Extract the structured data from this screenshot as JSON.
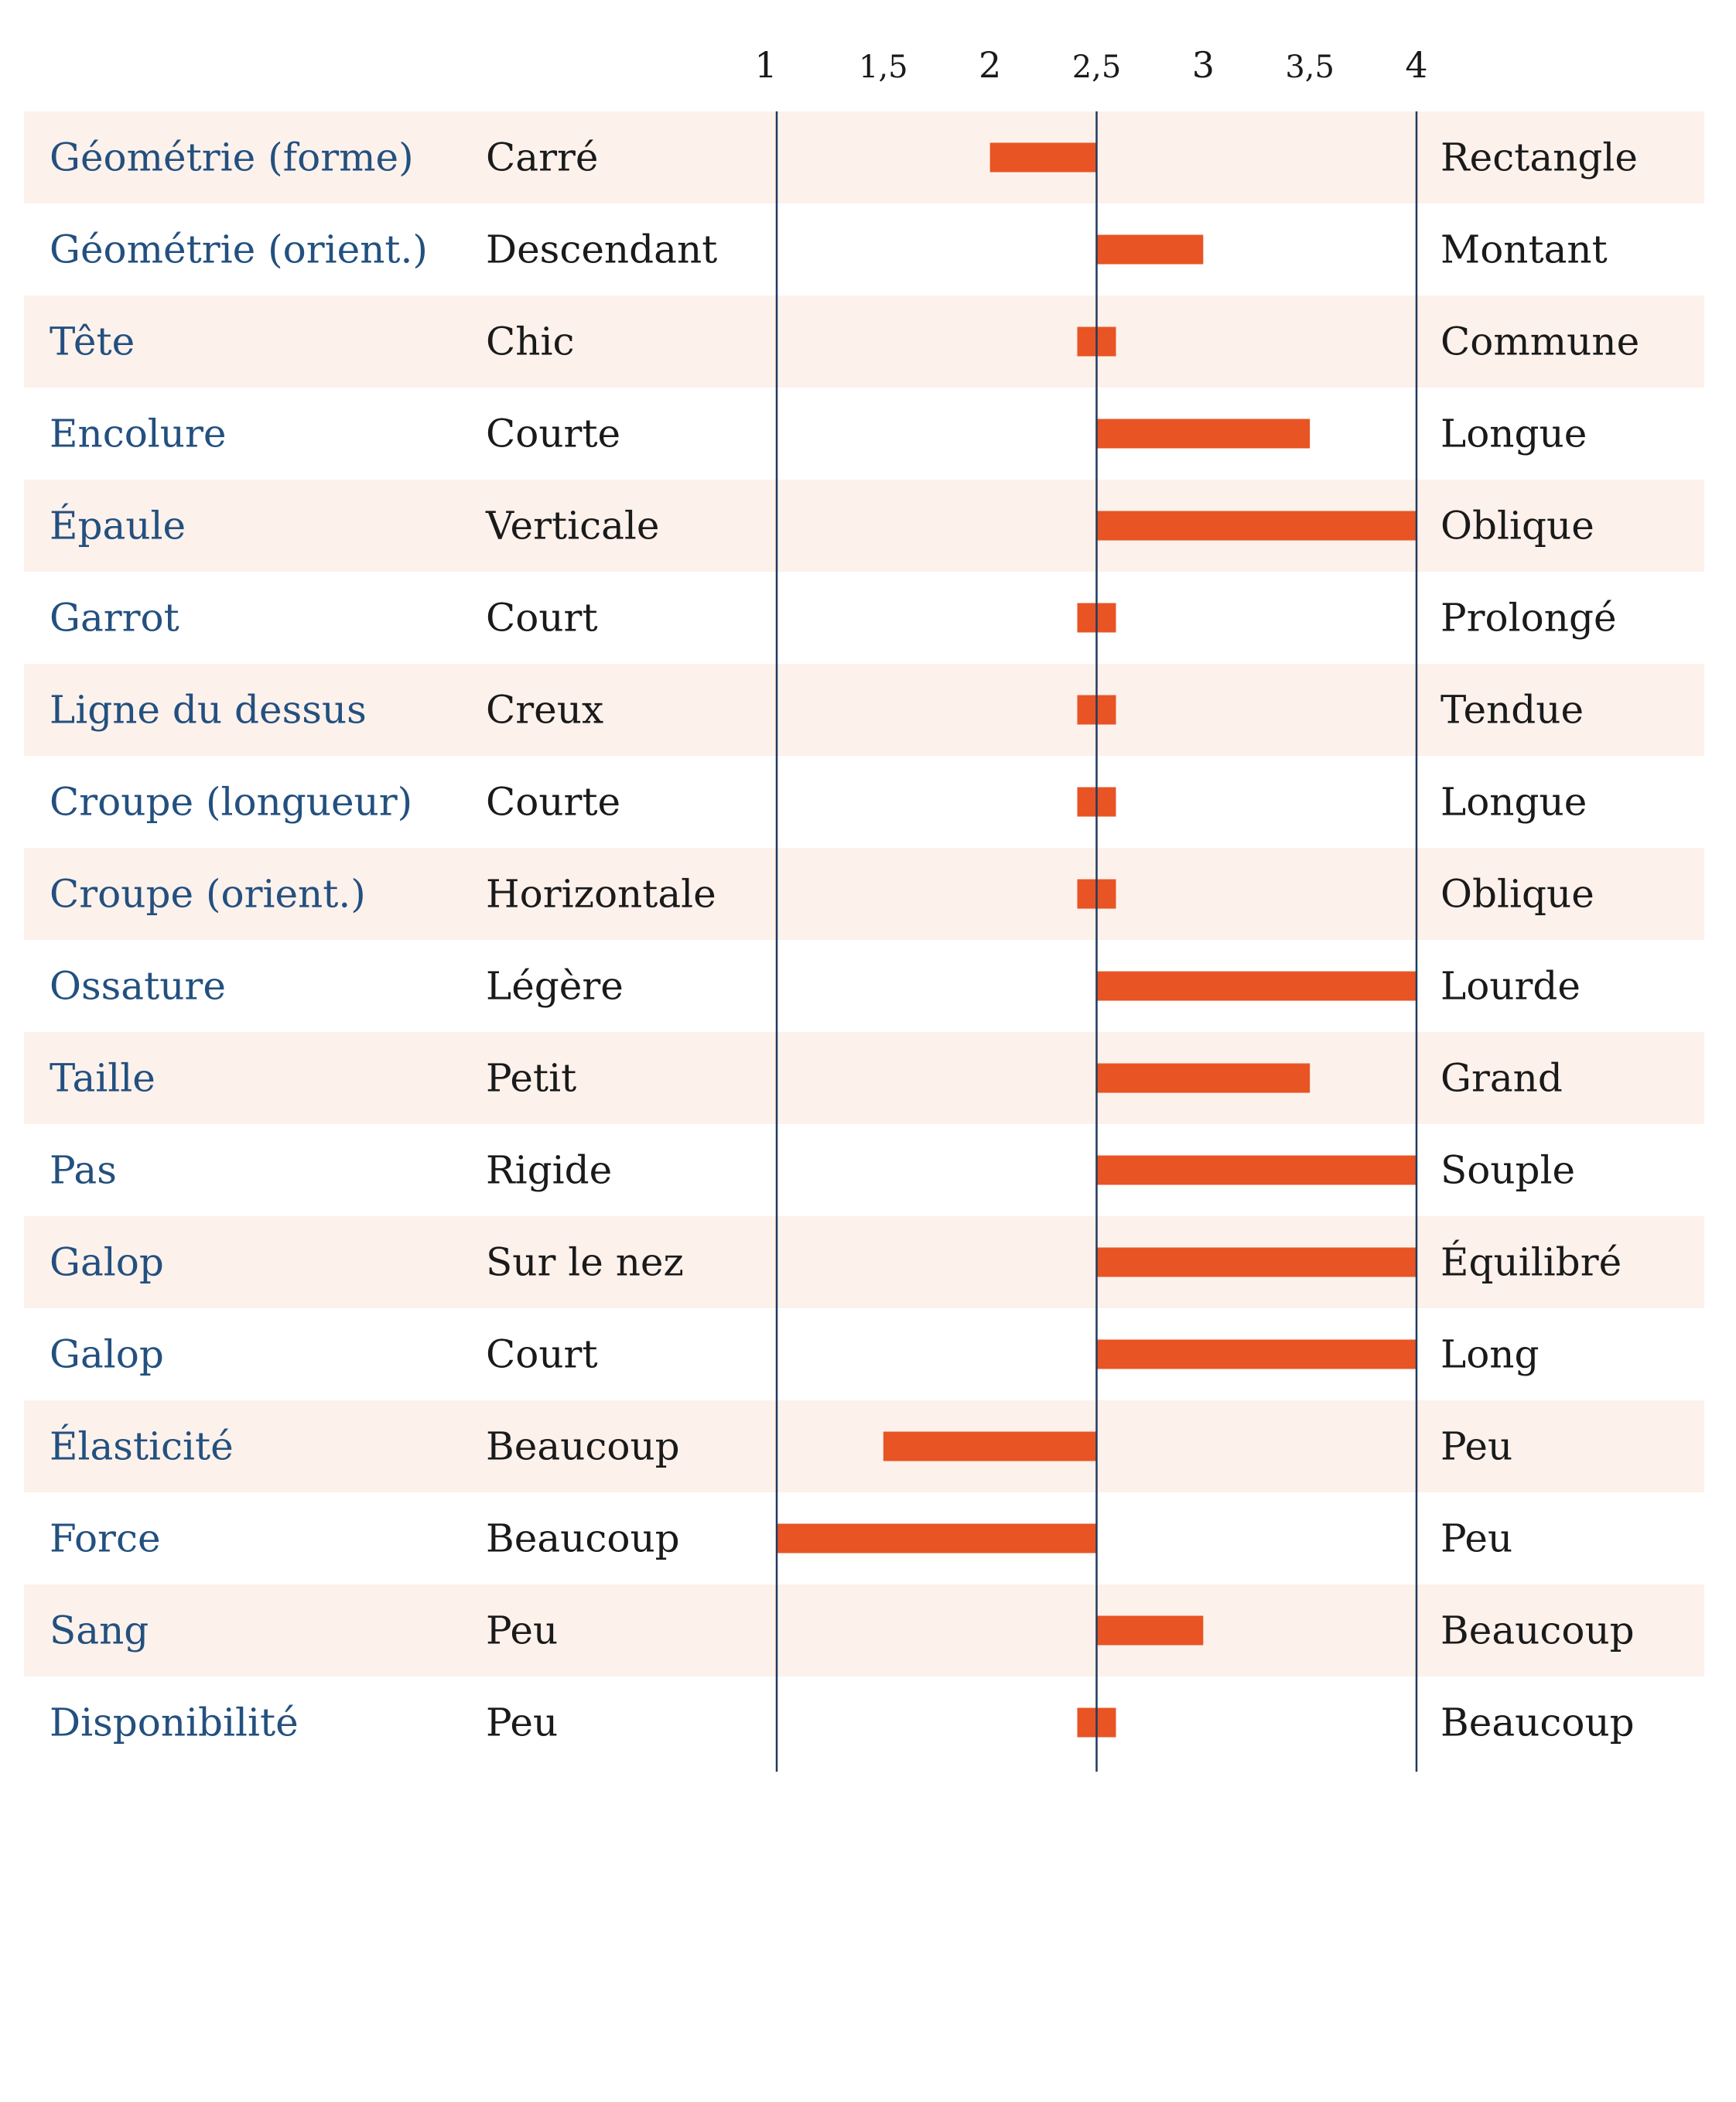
{
  "chart_data": {
    "type": "bar",
    "orientation": "horizontal",
    "baseline": 2.5,
    "xlim": [
      1,
      4
    ],
    "x_ticks": [
      "1",
      "1,5",
      "2",
      "2,5",
      "3",
      "3,5",
      "4"
    ],
    "x_tick_values": [
      1,
      1.5,
      2,
      2.5,
      3,
      3.5,
      4
    ],
    "reference_lines": [
      1,
      2.5,
      4
    ],
    "rows": [
      {
        "trait": "Géométrie (forme)",
        "low": "Carré",
        "high": "Rectangle",
        "value": 2.0
      },
      {
        "trait": "Géométrie (orient.)",
        "low": "Descendant",
        "high": "Montant",
        "value": 3.0
      },
      {
        "trait": "Tête",
        "low": "Chic",
        "high": "Commune",
        "value": 2.5
      },
      {
        "trait": "Encolure",
        "low": "Courte",
        "high": "Longue",
        "value": 3.5
      },
      {
        "trait": "Épaule",
        "low": "Verticale",
        "high": "Oblique",
        "value": 4.0
      },
      {
        "trait": "Garrot",
        "low": "Court",
        "high": "Prolongé",
        "value": 2.5
      },
      {
        "trait": "Ligne du dessus",
        "low": "Creux",
        "high": "Tendue",
        "value": 2.5
      },
      {
        "trait": "Croupe (longueur)",
        "low": "Courte",
        "high": "Longue",
        "value": 2.5
      },
      {
        "trait": "Croupe (orient.)",
        "low": "Horizontale",
        "high": "Oblique",
        "value": 2.5
      },
      {
        "trait": "Ossature",
        "low": "Légère",
        "high": "Lourde",
        "value": 4.0
      },
      {
        "trait": "Taille",
        "low": "Petit",
        "high": "Grand",
        "value": 3.5
      },
      {
        "trait": "Pas",
        "low": "Rigide",
        "high": "Souple",
        "value": 4.0
      },
      {
        "trait": "Galop",
        "low": "Sur le nez",
        "high": "Équilibré",
        "value": 4.0
      },
      {
        "trait": "Galop",
        "low": "Court",
        "high": "Long",
        "value": 4.0
      },
      {
        "trait": "Élasticité",
        "low": "Beaucoup",
        "high": "Peu",
        "value": 1.5
      },
      {
        "trait": "Force",
        "low": "Beaucoup",
        "high": "Peu",
        "value": 1.0
      },
      {
        "trait": "Sang",
        "low": "Peu",
        "high": "Beaucoup",
        "value": 3.0
      },
      {
        "trait": "Disponibilité",
        "low": "Peu",
        "high": "Beaucoup",
        "value": 2.5
      }
    ],
    "colors": {
      "bar": "#e85424",
      "stripe": "#fdf1ec",
      "trait_text": "#23507f",
      "pole_text": "#1a1a1a",
      "reference_line": "#1f3a5c"
    },
    "grid": false,
    "legend": "none"
  }
}
